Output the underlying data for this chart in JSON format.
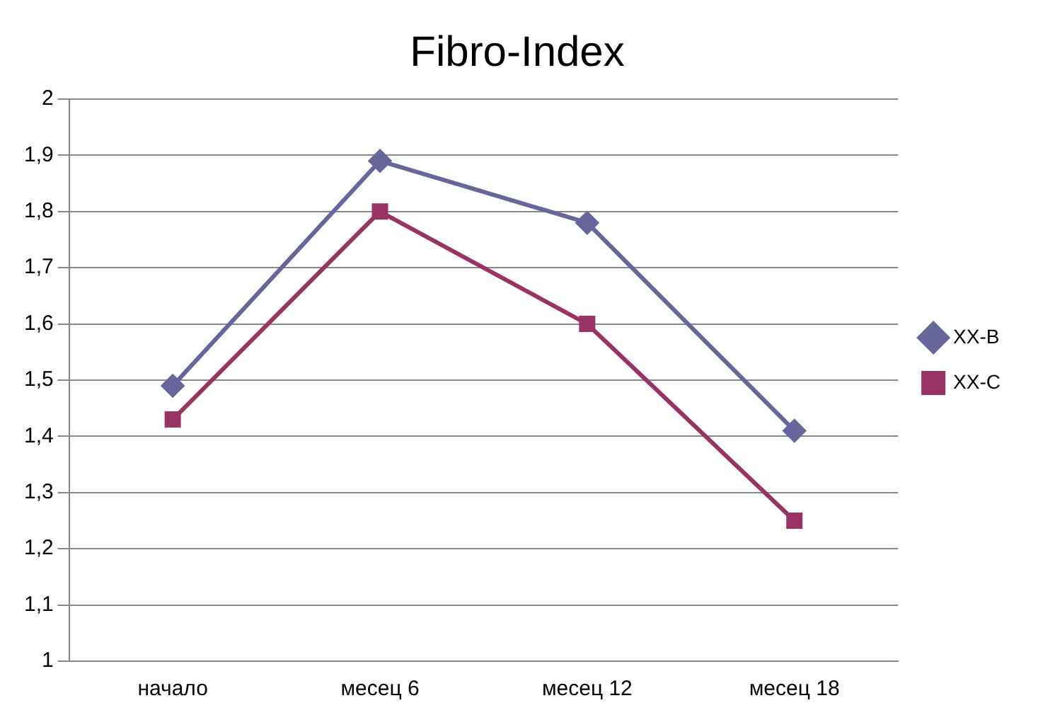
{
  "chart_data": {
    "type": "line",
    "title": "Fibro-Index",
    "categories": [
      "начало",
      "месец 6",
      "месец 12",
      "месец 18"
    ],
    "series": [
      {
        "name": "XX-B",
        "color": "#66669c",
        "marker": "diamond",
        "values": [
          1.49,
          1.89,
          1.78,
          1.41
        ]
      },
      {
        "name": "XX-C",
        "color": "#993366",
        "marker": "square",
        "values": [
          1.43,
          1.8,
          1.6,
          1.25
        ]
      }
    ],
    "ylim": [
      1,
      2
    ],
    "yticks": [
      {
        "value": 1,
        "label": "1"
      },
      {
        "value": 1.1,
        "label": "1,1"
      },
      {
        "value": 1.2,
        "label": "1,2"
      },
      {
        "value": 1.3,
        "label": "1,3"
      },
      {
        "value": 1.4,
        "label": "1,4"
      },
      {
        "value": 1.5,
        "label": "1,5"
      },
      {
        "value": 1.6,
        "label": "1,6"
      },
      {
        "value": 1.7,
        "label": "1,7"
      },
      {
        "value": 1.8,
        "label": "1,8"
      },
      {
        "value": 1.9,
        "label": "1,9"
      },
      {
        "value": 2,
        "label": "2"
      }
    ],
    "grid": "y",
    "legend": "right"
  }
}
